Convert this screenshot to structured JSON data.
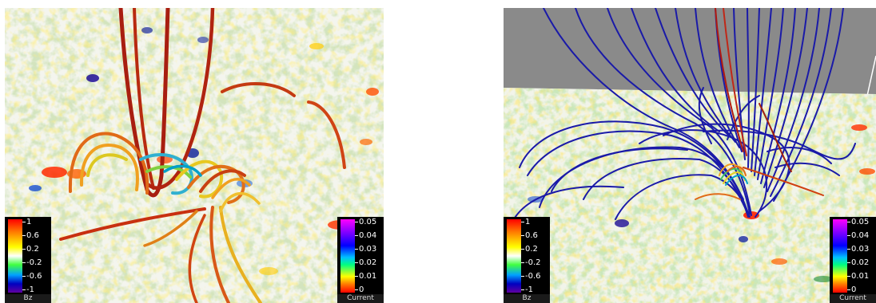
{
  "panels": [
    {
      "id": "left",
      "bz_colorbar": {
        "title": "Bz",
        "ticks": [
          "1",
          "0.6",
          "0.2",
          "-0.2",
          "-0.6",
          "-1"
        ]
      },
      "current_colorbar": {
        "title": "Current",
        "ticks": [
          "0.05",
          "0.04",
          "0.03",
          "0.02",
          "0.01",
          "0"
        ]
      }
    },
    {
      "id": "right",
      "bz_colorbar": {
        "title": "Bz",
        "ticks": [
          "1",
          "0.6",
          "0.2",
          "-0.2",
          "-0.6",
          "-1"
        ]
      },
      "current_colorbar": {
        "title": "Current",
        "ticks": [
          "0.05",
          "0.04",
          "0.03",
          "0.02",
          "0.01",
          "0"
        ]
      }
    }
  ],
  "colors": {
    "field_line_left": "#b82a10",
    "field_line_right": "#1a1aa8",
    "background_sky": "#8a8a8a"
  }
}
